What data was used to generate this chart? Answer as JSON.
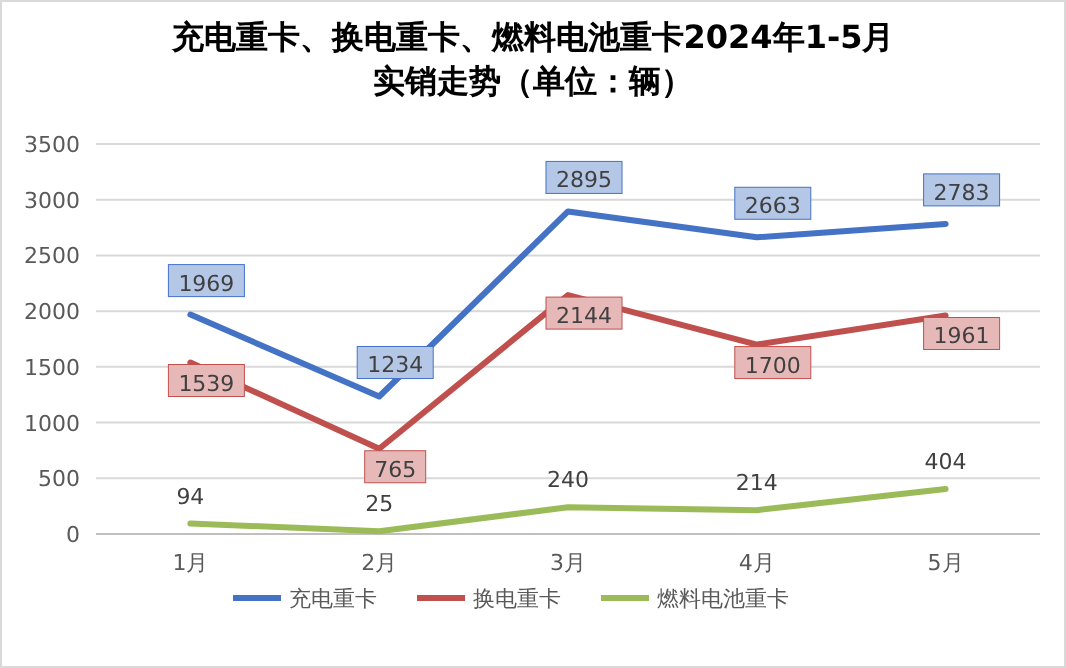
{
  "chart_data": {
    "type": "line",
    "title": "充电重卡、换电重卡、燃料电池重卡2024年1-5月",
    "subtitle": "实销走势（单位：辆）",
    "categories": [
      "1月",
      "2月",
      "3月",
      "4月",
      "5月"
    ],
    "series": [
      {
        "name": "充电重卡",
        "color": "#4472c4",
        "values": [
          1969,
          1234,
          2895,
          2663,
          2783
        ]
      },
      {
        "name": "换电重卡",
        "color": "#c0504d",
        "values": [
          1539,
          765,
          2144,
          1700,
          1961
        ]
      },
      {
        "name": "燃料电池重卡",
        "color": "#9bbb59",
        "values": [
          94,
          25,
          240,
          214,
          404
        ]
      }
    ],
    "ylim": [
      0,
      3500
    ],
    "yticks": [
      0,
      500,
      1000,
      1500,
      2000,
      2500,
      3000,
      3500
    ],
    "grid": "y",
    "legend": "bottom",
    "data_labels": true,
    "marker": "none",
    "line_style": "solid"
  }
}
